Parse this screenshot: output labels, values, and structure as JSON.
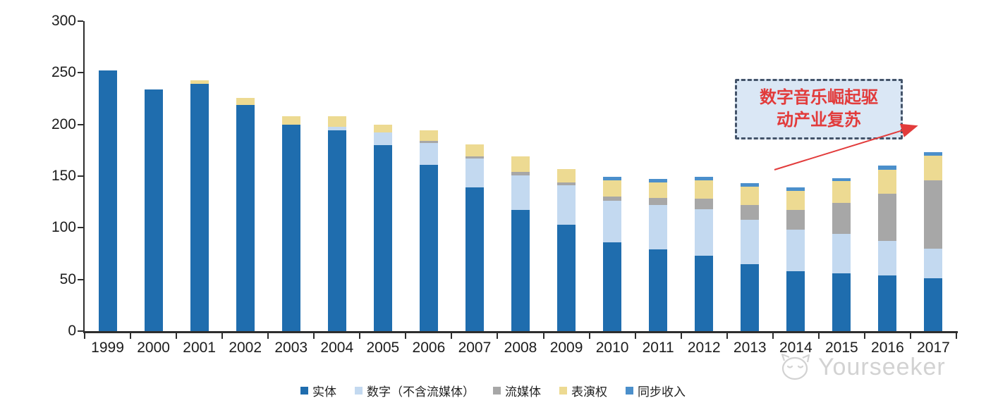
{
  "chart_data": {
    "type": "bar",
    "stacked": true,
    "categories": [
      "1999",
      "2000",
      "2001",
      "2002",
      "2003",
      "2004",
      "2005",
      "2006",
      "2007",
      "2008",
      "2009",
      "2010",
      "2011",
      "2012",
      "2013",
      "2014",
      "2015",
      "2016",
      "2017"
    ],
    "series": [
      {
        "name": "实体",
        "color": "#1f6dae",
        "values": [
          252,
          234,
          239,
          219,
          200,
          194,
          180,
          161,
          139,
          117,
          103,
          86,
          79,
          73,
          65,
          58,
          56,
          54,
          51
        ]
      },
      {
        "name": "数字（不含流媒体）",
        "color": "#c3d9f0",
        "values": [
          0,
          0,
          0,
          0,
          0,
          4,
          12,
          21,
          28,
          34,
          38,
          40,
          43,
          45,
          43,
          40,
          38,
          33,
          29
        ]
      },
      {
        "name": "流媒体",
        "color": "#a7a7a7",
        "values": [
          0,
          0,
          0,
          0,
          0,
          0,
          0,
          2,
          2,
          3,
          3,
          4,
          7,
          10,
          14,
          19,
          30,
          46,
          66
        ]
      },
      {
        "name": "表演权",
        "color": "#edda92",
        "values": [
          0,
          0,
          4,
          7,
          8,
          10,
          8,
          10,
          12,
          15,
          13,
          16,
          15,
          18,
          18,
          19,
          21,
          23,
          24
        ]
      },
      {
        "name": "同步收入",
        "color": "#4b8fcb",
        "values": [
          0,
          0,
          0,
          0,
          0,
          0,
          0,
          0,
          0,
          0,
          0,
          3,
          3,
          3,
          3,
          3,
          3,
          4,
          3
        ]
      }
    ],
    "title": "",
    "xlabel": "",
    "ylabel": "",
    "ylim": [
      0,
      300
    ],
    "yticks": [
      0,
      50,
      100,
      150,
      200,
      250,
      300
    ],
    "grid": false,
    "legend_position": "bottom"
  },
  "annotation": {
    "line1": "数字音乐崛起驱",
    "line2": "动产业复苏",
    "text_color": "#e23b3b",
    "box_fill": "#dae7f5",
    "box_border": "#44546a",
    "arrow_color": "#e23b3b"
  },
  "watermark": {
    "text": "Yourseeker",
    "logo": "cat-logo-icon",
    "color": "#cbcbcb"
  },
  "colors": {
    "axis": "#2e2e2e",
    "background": "#ffffff"
  }
}
